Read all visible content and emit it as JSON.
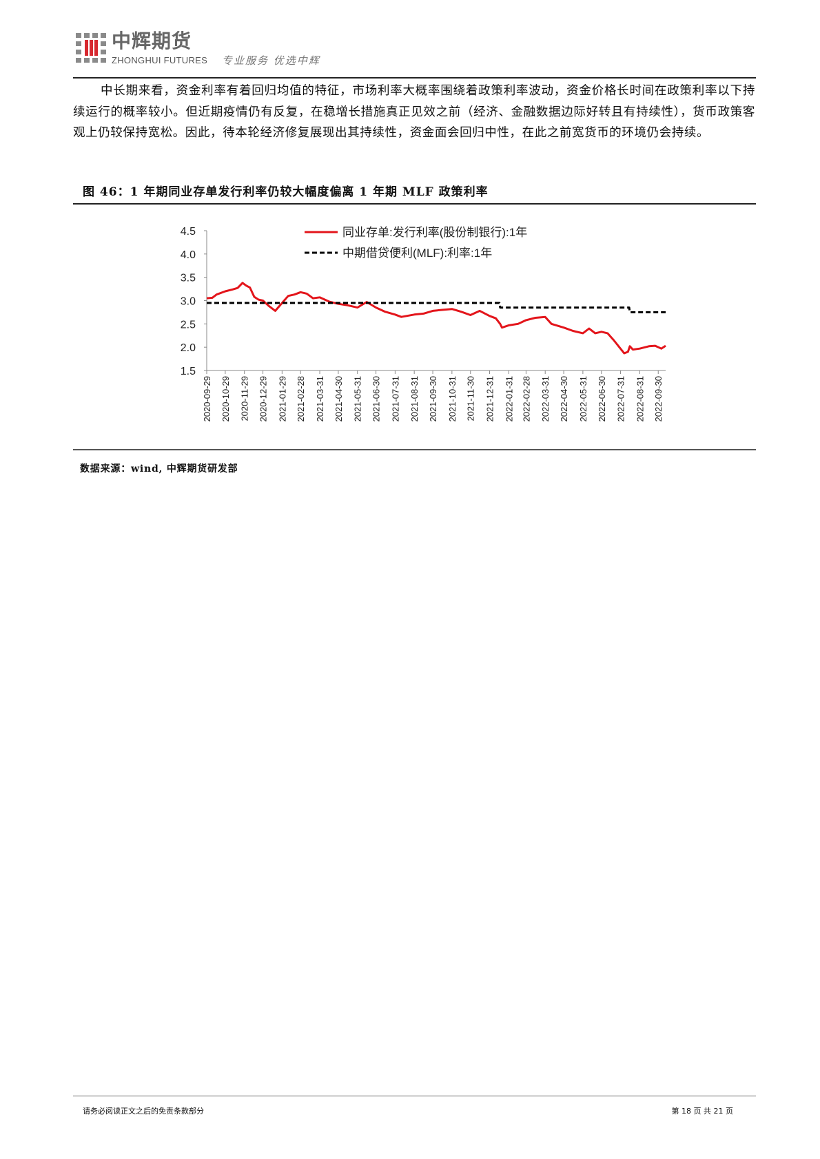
{
  "header": {
    "logo_cn": "中辉期货",
    "logo_en": "ZHONGHUI FUTURES",
    "slogan": "专业服务 优选中辉",
    "logo_colors": {
      "grey": "#8a8a8a",
      "red": "#d7282f"
    }
  },
  "body": {
    "paragraph": "中长期来看，资金利率有着回归均值的特征，市场利率大概率围绕着政策利率波动，资金价格长时间在政策利率以下持续运行的概率较小。但近期疫情仍有反复，在稳增长措施真正见效之前（经济、金融数据边际好转且有持续性），货币政策客观上仍较保持宽松。因此，待本轮经济修复展现出其持续性，资金面会回归中性，在此之前宽货币的环境仍会持续。"
  },
  "figure": {
    "caption": "图 46：1 年期同业存单发行利率仍较大幅度偏离 1 年期 MLF 政策利率",
    "source": "数据来源：wind, 中辉期货研发部"
  },
  "chart_data": {
    "type": "line",
    "title": "",
    "xlabel": "",
    "ylabel": "",
    "ylim": [
      1.5,
      4.5
    ],
    "yticks": [
      "4.5",
      "4.0",
      "3.5",
      "3.0",
      "2.5",
      "2.0",
      "1.5"
    ],
    "xlim": [
      "2020-09-29",
      "2022-10-12"
    ],
    "xticks": [
      "2020-09-29",
      "2020-10-29",
      "2020-11-29",
      "2020-12-29",
      "2021-01-29",
      "2021-02-28",
      "2021-03-31",
      "2021-04-30",
      "2021-05-31",
      "2021-06-30",
      "2021-07-31",
      "2021-08-31",
      "2021-09-30",
      "2021-10-31",
      "2021-11-30",
      "2021-12-31",
      "2022-01-31",
      "2022-02-28",
      "2022-03-31",
      "2022-04-30",
      "2022-05-31",
      "2022-06-30",
      "2022-07-31",
      "2022-08-31",
      "2022-09-30"
    ],
    "grid": false,
    "legend": "top-right",
    "series": [
      {
        "name": "同业存单:发行利率(股份制银行):1年",
        "color": "#e3151b",
        "style": "solid",
        "points": [
          [
            "2020-09-29",
            3.05
          ],
          [
            "2020-10-08",
            3.06
          ],
          [
            "2020-10-15",
            3.13
          ],
          [
            "2020-10-29",
            3.2
          ],
          [
            "2020-11-10",
            3.24
          ],
          [
            "2020-11-18",
            3.27
          ],
          [
            "2020-11-26",
            3.38
          ],
          [
            "2020-12-02",
            3.32
          ],
          [
            "2020-12-08",
            3.28
          ],
          [
            "2020-12-15",
            3.08
          ],
          [
            "2020-12-22",
            3.02
          ],
          [
            "2020-12-29",
            3.0
          ],
          [
            "2021-01-08",
            2.88
          ],
          [
            "2021-01-18",
            2.78
          ],
          [
            "2021-01-29",
            2.95
          ],
          [
            "2021-02-08",
            3.1
          ],
          [
            "2021-02-18",
            3.13
          ],
          [
            "2021-02-28",
            3.18
          ],
          [
            "2021-03-10",
            3.15
          ],
          [
            "2021-03-20",
            3.05
          ],
          [
            "2021-03-31",
            3.07
          ],
          [
            "2021-04-15",
            2.98
          ],
          [
            "2021-04-30",
            2.93
          ],
          [
            "2021-05-15",
            2.9
          ],
          [
            "2021-05-31",
            2.85
          ],
          [
            "2021-06-15",
            2.97
          ],
          [
            "2021-06-30",
            2.85
          ],
          [
            "2021-07-15",
            2.76
          ],
          [
            "2021-07-31",
            2.7
          ],
          [
            "2021-08-10",
            2.65
          ],
          [
            "2021-08-31",
            2.7
          ],
          [
            "2021-09-15",
            2.72
          ],
          [
            "2021-09-30",
            2.78
          ],
          [
            "2021-10-15",
            2.8
          ],
          [
            "2021-10-31",
            2.82
          ],
          [
            "2021-11-15",
            2.76
          ],
          [
            "2021-11-30",
            2.69
          ],
          [
            "2021-12-15",
            2.78
          ],
          [
            "2021-12-31",
            2.67
          ],
          [
            "2022-01-10",
            2.62
          ],
          [
            "2022-01-17",
            2.5
          ],
          [
            "2022-01-20",
            2.42
          ],
          [
            "2022-01-31",
            2.47
          ],
          [
            "2022-02-15",
            2.5
          ],
          [
            "2022-02-28",
            2.58
          ],
          [
            "2022-03-15",
            2.63
          ],
          [
            "2022-03-31",
            2.65
          ],
          [
            "2022-04-10",
            2.5
          ],
          [
            "2022-04-30",
            2.42
          ],
          [
            "2022-05-15",
            2.35
          ],
          [
            "2022-05-31",
            2.3
          ],
          [
            "2022-06-10",
            2.4
          ],
          [
            "2022-06-20",
            2.3
          ],
          [
            "2022-06-30",
            2.33
          ],
          [
            "2022-07-10",
            2.3
          ],
          [
            "2022-07-20",
            2.15
          ],
          [
            "2022-08-01",
            1.95
          ],
          [
            "2022-08-06",
            1.87
          ],
          [
            "2022-08-12",
            1.9
          ],
          [
            "2022-08-15",
            2.02
          ],
          [
            "2022-08-20",
            1.95
          ],
          [
            "2022-08-31",
            1.97
          ],
          [
            "2022-09-15",
            2.02
          ],
          [
            "2022-09-25",
            2.03
          ],
          [
            "2022-10-05",
            1.97
          ],
          [
            "2022-10-12",
            2.03
          ]
        ]
      },
      {
        "name": "中期借贷便利(MLF):利率:1年",
        "color": "#000000",
        "style": "dashed",
        "points": [
          [
            "2020-09-29",
            2.95
          ],
          [
            "2022-01-16",
            2.95
          ],
          [
            "2022-01-17",
            2.85
          ],
          [
            "2022-08-14",
            2.85
          ],
          [
            "2022-08-15",
            2.75
          ],
          [
            "2022-10-12",
            2.75
          ]
        ]
      }
    ]
  },
  "footer": {
    "disclaimer": "请务必阅读正文之后的免责条款部分",
    "page": "第 18 页 共 21 页"
  }
}
